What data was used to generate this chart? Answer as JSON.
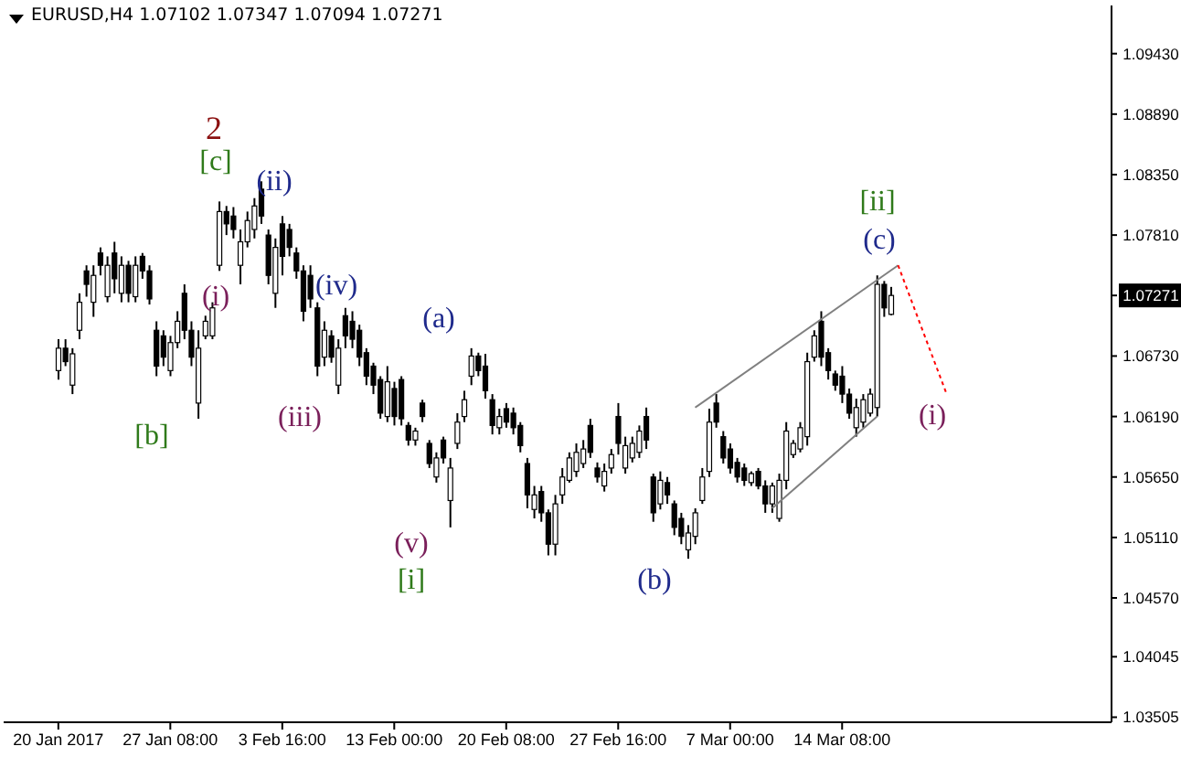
{
  "chart_data": {
    "type": "candlestick",
    "title": "EURUSD,H4 1.07102 1.07347 1.07094 1.07271",
    "color": "#000000",
    "categories": [
      "20 Jan 2017",
      null,
      null,
      null,
      null,
      null,
      null,
      null,
      null,
      null,
      null,
      null,
      null,
      null,
      null,
      null,
      "27 Jan 08:00",
      null,
      null,
      null,
      null,
      null,
      null,
      null,
      null,
      null,
      null,
      null,
      null,
      null,
      null,
      null,
      "3 Feb 16:00",
      null,
      null,
      null,
      null,
      null,
      null,
      null,
      null,
      null,
      null,
      null,
      null,
      null,
      null,
      null,
      "13 Feb 00:00",
      null,
      null,
      null,
      null,
      null,
      null,
      null,
      null,
      null,
      null,
      null,
      null,
      null,
      null,
      null,
      "20 Feb 08:00",
      null,
      null,
      null,
      null,
      null,
      null,
      null,
      null,
      null,
      null,
      null,
      null,
      null,
      null,
      null,
      "27 Feb 16:00",
      null,
      null,
      null,
      null,
      null,
      null,
      null,
      null,
      null,
      null,
      null,
      null,
      null,
      null,
      null,
      "7 Mar 00:00",
      null,
      null,
      null,
      null,
      null,
      null,
      null,
      null,
      null,
      null,
      null,
      null,
      null,
      null,
      null,
      "14 Mar 08:00",
      null,
      null,
      null,
      null,
      null,
      null,
      null,
      null,
      null,
      null,
      null,
      null,
      null,
      null,
      null,
      null,
      null,
      null,
      null,
      null,
      null,
      null,
      null,
      null,
      null,
      null,
      null,
      null,
      null,
      null,
      null,
      null,
      null,
      null,
      null,
      null,
      null,
      null
    ],
    "ohlc": [
      [
        1.066,
        1.0688,
        1.0652,
        1.068
      ],
      [
        1.068,
        1.0688,
        1.0664,
        1.0668
      ],
      [
        1.0647,
        1.068,
        1.0639,
        1.0675
      ],
      [
        1.0696,
        1.0729,
        1.0688,
        1.0721
      ],
      [
        1.0749,
        1.0754,
        1.0726,
        1.0737
      ],
      [
        1.0721,
        1.0754,
        1.0708,
        1.0745
      ],
      [
        1.0765,
        1.077,
        1.0745,
        1.0754
      ],
      [
        1.0726,
        1.0762,
        1.0721,
        1.0754
      ],
      [
        1.0765,
        1.0775,
        1.0729,
        1.0742
      ],
      [
        1.0729,
        1.0762,
        1.0721,
        1.0754
      ],
      [
        1.0754,
        1.0758,
        1.0721,
        1.0729
      ],
      [
        1.0726,
        1.0762,
        1.0721,
        1.0754
      ],
      [
        1.0762,
        1.0765,
        1.0742,
        1.0749
      ],
      [
        1.0749,
        1.0754,
        1.0719,
        1.0724
      ],
      [
        1.0696,
        1.0704,
        1.0655,
        1.0664
      ],
      [
        1.0691,
        1.0696,
        1.0664,
        1.0672
      ],
      [
        1.066,
        1.0691,
        1.0655,
        1.0685
      ],
      [
        1.0685,
        1.0713,
        1.068,
        1.0704
      ],
      [
        1.0729,
        1.0737,
        1.0688,
        1.0696
      ],
      [
        1.0696,
        1.0704,
        1.0664,
        1.0672
      ],
      [
        1.0631,
        1.0696,
        1.0617,
        1.068
      ],
      [
        1.0691,
        1.0709,
        1.0688,
        1.0704
      ],
      [
        1.0691,
        1.0721,
        1.0688,
        1.0716
      ],
      [
        1.0754,
        1.0811,
        1.0749,
        1.0802
      ],
      [
        1.0802,
        1.0807,
        1.0781,
        1.0791
      ],
      [
        1.0798,
        1.0806,
        1.0778,
        1.0786
      ],
      [
        1.0754,
        1.0786,
        1.0737,
        1.0775
      ],
      [
        1.0775,
        1.0802,
        1.077,
        1.0794
      ],
      [
        1.0786,
        1.0814,
        1.0778,
        1.0807
      ],
      [
        1.0822,
        1.0829,
        1.0791,
        1.0798
      ],
      [
        1.0781,
        1.0786,
        1.0737,
        1.0745
      ],
      [
        1.0729,
        1.0778,
        1.0716,
        1.077
      ],
      [
        1.0791,
        1.0798,
        1.0745,
        1.0762
      ],
      [
        1.0786,
        1.0791,
        1.0762,
        1.077
      ],
      [
        1.0765,
        1.077,
        1.0742,
        1.0749
      ],
      [
        1.0749,
        1.0754,
        1.0704,
        1.0713
      ],
      [
        1.0745,
        1.0754,
        1.0716,
        1.0724
      ],
      [
        1.0716,
        1.0721,
        1.0655,
        1.0664
      ],
      [
        1.0672,
        1.0704,
        1.0664,
        1.0696
      ],
      [
        1.0691,
        1.0696,
        1.0667,
        1.0672
      ],
      [
        1.0647,
        1.0688,
        1.0639,
        1.068
      ],
      [
        1.0709,
        1.0716,
        1.068,
        1.0691
      ],
      [
        1.0704,
        1.0713,
        1.068,
        1.0688
      ],
      [
        1.0696,
        1.0701,
        1.0664,
        1.0672
      ],
      [
        1.0676,
        1.068,
        1.0647,
        1.0655
      ],
      [
        1.0664,
        1.0667,
        1.0639,
        1.0647
      ],
      [
        1.0652,
        1.0655,
        1.0617,
        1.0622
      ],
      [
        1.0619,
        1.0664,
        1.0614,
        1.065
      ],
      [
        1.0644,
        1.065,
        1.0611,
        1.0619
      ],
      [
        1.0652,
        1.0655,
        1.0611,
        1.0617
      ],
      [
        1.0611,
        1.0614,
        1.0593,
        1.0598
      ],
      [
        1.0598,
        1.0609,
        1.0593,
        1.0606
      ],
      [
        1.0631,
        1.0634,
        1.0614,
        1.0619
      ],
      [
        1.0595,
        1.0598,
        1.0573,
        1.0577
      ],
      [
        1.0565,
        1.0587,
        1.056,
        1.0582
      ],
      [
        1.0598,
        1.0601,
        1.0577,
        1.0582
      ],
      [
        1.0544,
        1.0582,
        1.052,
        1.0573
      ],
      [
        1.0595,
        1.0622,
        1.059,
        1.0614
      ],
      [
        1.0619,
        1.0642,
        1.0614,
        1.0634
      ],
      [
        1.0655,
        1.068,
        1.0647,
        1.0673
      ],
      [
        1.0673,
        1.0676,
        1.0655,
        1.066
      ],
      [
        1.0664,
        1.0675,
        1.0635,
        1.0642
      ],
      [
        1.0634,
        1.0639,
        1.0603,
        1.0611
      ],
      [
        1.0609,
        1.0626,
        1.0603,
        1.0619
      ],
      [
        1.0626,
        1.0631,
        1.0609,
        1.0614
      ],
      [
        1.0622,
        1.0627,
        1.0603,
        1.0609
      ],
      [
        1.0611,
        1.0614,
        1.0587,
        1.0593
      ],
      [
        1.0577,
        1.0582,
        1.0537,
        1.0549
      ],
      [
        1.0536,
        1.0557,
        1.0528,
        1.0549
      ],
      [
        1.0552,
        1.0557,
        1.0525,
        1.0533
      ],
      [
        1.0533,
        1.0536,
        1.0495,
        1.0505
      ],
      [
        1.0505,
        1.0549,
        1.0495,
        1.0541
      ],
      [
        1.0549,
        1.0573,
        1.0541,
        1.0565
      ],
      [
        1.0562,
        1.0587,
        1.056,
        1.0582
      ],
      [
        1.057,
        1.0595,
        1.0565,
        1.0587
      ],
      [
        1.0577,
        1.0598,
        1.0573,
        1.059
      ],
      [
        1.0611,
        1.0617,
        1.0582,
        1.0587
      ],
      [
        1.0573,
        1.0578,
        1.056,
        1.0565
      ],
      [
        1.0557,
        1.0577,
        1.0552,
        1.057
      ],
      [
        1.0573,
        1.059,
        1.0568,
        1.0585
      ],
      [
        1.0619,
        1.0631,
        1.0585,
        1.0595
      ],
      [
        1.0573,
        1.0601,
        1.0568,
        1.0593
      ],
      [
        1.0582,
        1.0601,
        1.0578,
        1.0595
      ],
      [
        1.0587,
        1.0611,
        1.0582,
        1.0606
      ],
      [
        1.0619,
        1.0627,
        1.059,
        1.0598
      ],
      [
        1.0565,
        1.0568,
        1.0525,
        1.0533
      ],
      [
        1.0541,
        1.057,
        1.0536,
        1.0562
      ],
      [
        1.056,
        1.0565,
        1.0541,
        1.0549
      ],
      [
        1.0541,
        1.0544,
        1.0513,
        1.052
      ],
      [
        1.0528,
        1.0533,
        1.0505,
        1.0512
      ],
      [
        1.05,
        1.0522,
        1.0492,
        1.0515
      ],
      [
        1.0512,
        1.0537,
        1.0505,
        1.0533
      ],
      [
        1.0544,
        1.0573,
        1.0541,
        1.0565
      ],
      [
        1.057,
        1.0626,
        1.0565,
        1.0614
      ],
      [
        1.0631,
        1.0639,
        1.0609,
        1.0614
      ],
      [
        1.0601,
        1.0606,
        1.0577,
        1.0582
      ],
      [
        1.059,
        1.0595,
        1.0568,
        1.0573
      ],
      [
        1.0578,
        1.0582,
        1.056,
        1.0565
      ],
      [
        1.0573,
        1.0577,
        1.0557,
        1.0562
      ],
      [
        1.056,
        1.057,
        1.0557,
        1.0568
      ],
      [
        1.057,
        1.0573,
        1.0554,
        1.0557
      ],
      [
        1.0557,
        1.0562,
        1.0533,
        1.0541
      ],
      [
        1.0541,
        1.056,
        1.0533,
        1.0557
      ],
      [
        1.0528,
        1.0568,
        1.0525,
        1.0562
      ],
      [
        1.0562,
        1.0614,
        1.0554,
        1.0606
      ],
      [
        1.0585,
        1.0598,
        1.0582,
        1.0595
      ],
      [
        1.059,
        1.0614,
        1.0587,
        1.0609
      ],
      [
        1.0601,
        1.0676,
        1.0593,
        1.0668
      ],
      [
        1.0672,
        1.0696,
        1.0668,
        1.0691
      ],
      [
        1.0704,
        1.0713,
        1.0664,
        1.0672
      ],
      [
        1.0676,
        1.068,
        1.0652,
        1.066
      ],
      [
        1.0657,
        1.066,
        1.0642,
        1.0647
      ],
      [
        1.0655,
        1.0664,
        1.0631,
        1.0639
      ],
      [
        1.0639,
        1.0644,
        1.0617,
        1.0622
      ],
      [
        1.0609,
        1.0635,
        1.0601,
        1.0627
      ],
      [
        1.0614,
        1.0639,
        1.0609,
        1.0634
      ],
      [
        1.0622,
        1.0644,
        1.0619,
        1.0639
      ],
      [
        1.0627,
        1.0745,
        1.0619,
        1.0737
      ],
      [
        1.0737,
        1.074,
        1.0708,
        1.0716
      ],
      [
        1.07102,
        1.07347,
        1.07094,
        1.07271
      ],
      null,
      null,
      null,
      null,
      null,
      null,
      null,
      null,
      null,
      null,
      null,
      null,
      null,
      null,
      null,
      null,
      null,
      null,
      null,
      null,
      null,
      null,
      null,
      null,
      null,
      null,
      null,
      null,
      null,
      null,
      null
    ],
    "series": [
      {
        "type": "line",
        "color": "#808080",
        "values": [
          null,
          null,
          null,
          null,
          null,
          null,
          null,
          null,
          null,
          null,
          null,
          null,
          null,
          null,
          null,
          null,
          null,
          null,
          null,
          null,
          null,
          null,
          null,
          null,
          null,
          null,
          null,
          null,
          null,
          null,
          null,
          null,
          null,
          null,
          null,
          null,
          null,
          null,
          null,
          null,
          null,
          null,
          null,
          null,
          null,
          null,
          null,
          null,
          null,
          null,
          null,
          null,
          null,
          null,
          null,
          null,
          null,
          null,
          null,
          null,
          null,
          null,
          null,
          null,
          null,
          null,
          null,
          null,
          null,
          null,
          null,
          null,
          null,
          null,
          null,
          null,
          null,
          null,
          null,
          null,
          null,
          null,
          null,
          null,
          null,
          null,
          null,
          null,
          null,
          null,
          null,
          1.0627,
          null,
          null,
          null,
          null,
          null,
          null,
          null,
          null,
          null,
          null,
          null,
          null,
          null,
          null,
          null,
          null,
          null,
          null,
          null,
          null,
          null,
          null,
          null,
          null,
          null,
          null,
          null,
          null,
          1.0754,
          null,
          null,
          null,
          null,
          null,
          null,
          null,
          null,
          null,
          null,
          null,
          null,
          null,
          null,
          null,
          null,
          null,
          null,
          null,
          null,
          null,
          null,
          null,
          null,
          null,
          null,
          null,
          null,
          null,
          null
        ]
      },
      {
        "type": "line",
        "color": "#808080",
        "values": [
          null,
          null,
          null,
          null,
          null,
          null,
          null,
          null,
          null,
          null,
          null,
          null,
          null,
          null,
          null,
          null,
          null,
          null,
          null,
          null,
          null,
          null,
          null,
          null,
          null,
          null,
          null,
          null,
          null,
          null,
          null,
          null,
          null,
          null,
          null,
          null,
          null,
          null,
          null,
          null,
          null,
          null,
          null,
          null,
          null,
          null,
          null,
          null,
          null,
          null,
          null,
          null,
          null,
          null,
          null,
          null,
          null,
          null,
          null,
          null,
          null,
          null,
          null,
          null,
          null,
          null,
          null,
          null,
          null,
          null,
          null,
          null,
          null,
          null,
          null,
          null,
          null,
          null,
          null,
          null,
          null,
          null,
          null,
          null,
          null,
          null,
          null,
          null,
          null,
          null,
          null,
          null,
          null,
          null,
          null,
          null,
          null,
          null,
          null,
          null,
          null,
          null,
          1.0537,
          null,
          null,
          null,
          null,
          null,
          null,
          null,
          null,
          null,
          null,
          null,
          null,
          null,
          null,
          1.0619,
          null,
          null,
          null,
          null,
          null,
          null,
          null,
          null,
          null,
          null,
          null,
          null,
          null,
          null,
          null,
          null,
          null,
          null,
          null,
          null,
          null,
          null,
          null,
          null,
          null,
          null,
          null,
          null,
          null,
          null,
          null,
          null,
          null
        ]
      },
      {
        "type": "line",
        "color": "#ff0000",
        "line_style": "dotted",
        "values": [
          null,
          null,
          null,
          null,
          null,
          null,
          null,
          null,
          null,
          null,
          null,
          null,
          null,
          null,
          null,
          null,
          null,
          null,
          null,
          null,
          null,
          null,
          null,
          null,
          null,
          null,
          null,
          null,
          null,
          null,
          null,
          null,
          null,
          null,
          null,
          null,
          null,
          null,
          null,
          null,
          null,
          null,
          null,
          null,
          null,
          null,
          null,
          null,
          null,
          null,
          null,
          null,
          null,
          null,
          null,
          null,
          null,
          null,
          null,
          null,
          null,
          null,
          null,
          null,
          null,
          null,
          null,
          null,
          null,
          null,
          null,
          null,
          null,
          null,
          null,
          null,
          null,
          null,
          null,
          null,
          null,
          null,
          null,
          null,
          null,
          null,
          null,
          null,
          null,
          null,
          null,
          null,
          null,
          null,
          null,
          null,
          null,
          null,
          null,
          null,
          null,
          null,
          null,
          null,
          null,
          null,
          null,
          null,
          null,
          null,
          null,
          null,
          null,
          null,
          null,
          null,
          null,
          null,
          null,
          null,
          1.0754,
          null,
          null,
          null,
          null,
          null,
          null,
          1.0638,
          null,
          null,
          null,
          null,
          null,
          null,
          null,
          null,
          null,
          null,
          null,
          null,
          null,
          null,
          null,
          null,
          null,
          null,
          null,
          null,
          null,
          null,
          null
        ]
      }
    ],
    "ylim": [
      1.0346,
      1.0986
    ],
    "yticks": [
      {
        "value": 1.0943,
        "label": "1.09430"
      },
      {
        "value": 1.0889,
        "label": "1.08890"
      },
      {
        "value": 1.0835,
        "label": "1.08350"
      },
      {
        "value": 1.0781,
        "label": "1.07810"
      },
      {
        "value": 1.07271,
        "label": "1.07271"
      },
      {
        "value": 1.0673,
        "label": "1.06730"
      },
      {
        "value": 1.0619,
        "label": "1.06190"
      },
      {
        "value": 1.0565,
        "label": "1.05650"
      },
      {
        "value": 1.0511,
        "label": "1.05110"
      },
      {
        "value": 1.0457,
        "label": "1.04570"
      },
      {
        "value": 1.04045,
        "label": "1.04045"
      },
      {
        "value": 1.03505,
        "label": "1.03505"
      }
    ],
    "annotations": [
      "2",
      "[c]",
      "(ii)",
      "(i)",
      "[b]",
      "(iv)",
      "(iii)",
      "(a)",
      "(v)",
      "[i]",
      "(b)",
      "[ii]",
      "(c)",
      "(i)"
    ]
  }
}
